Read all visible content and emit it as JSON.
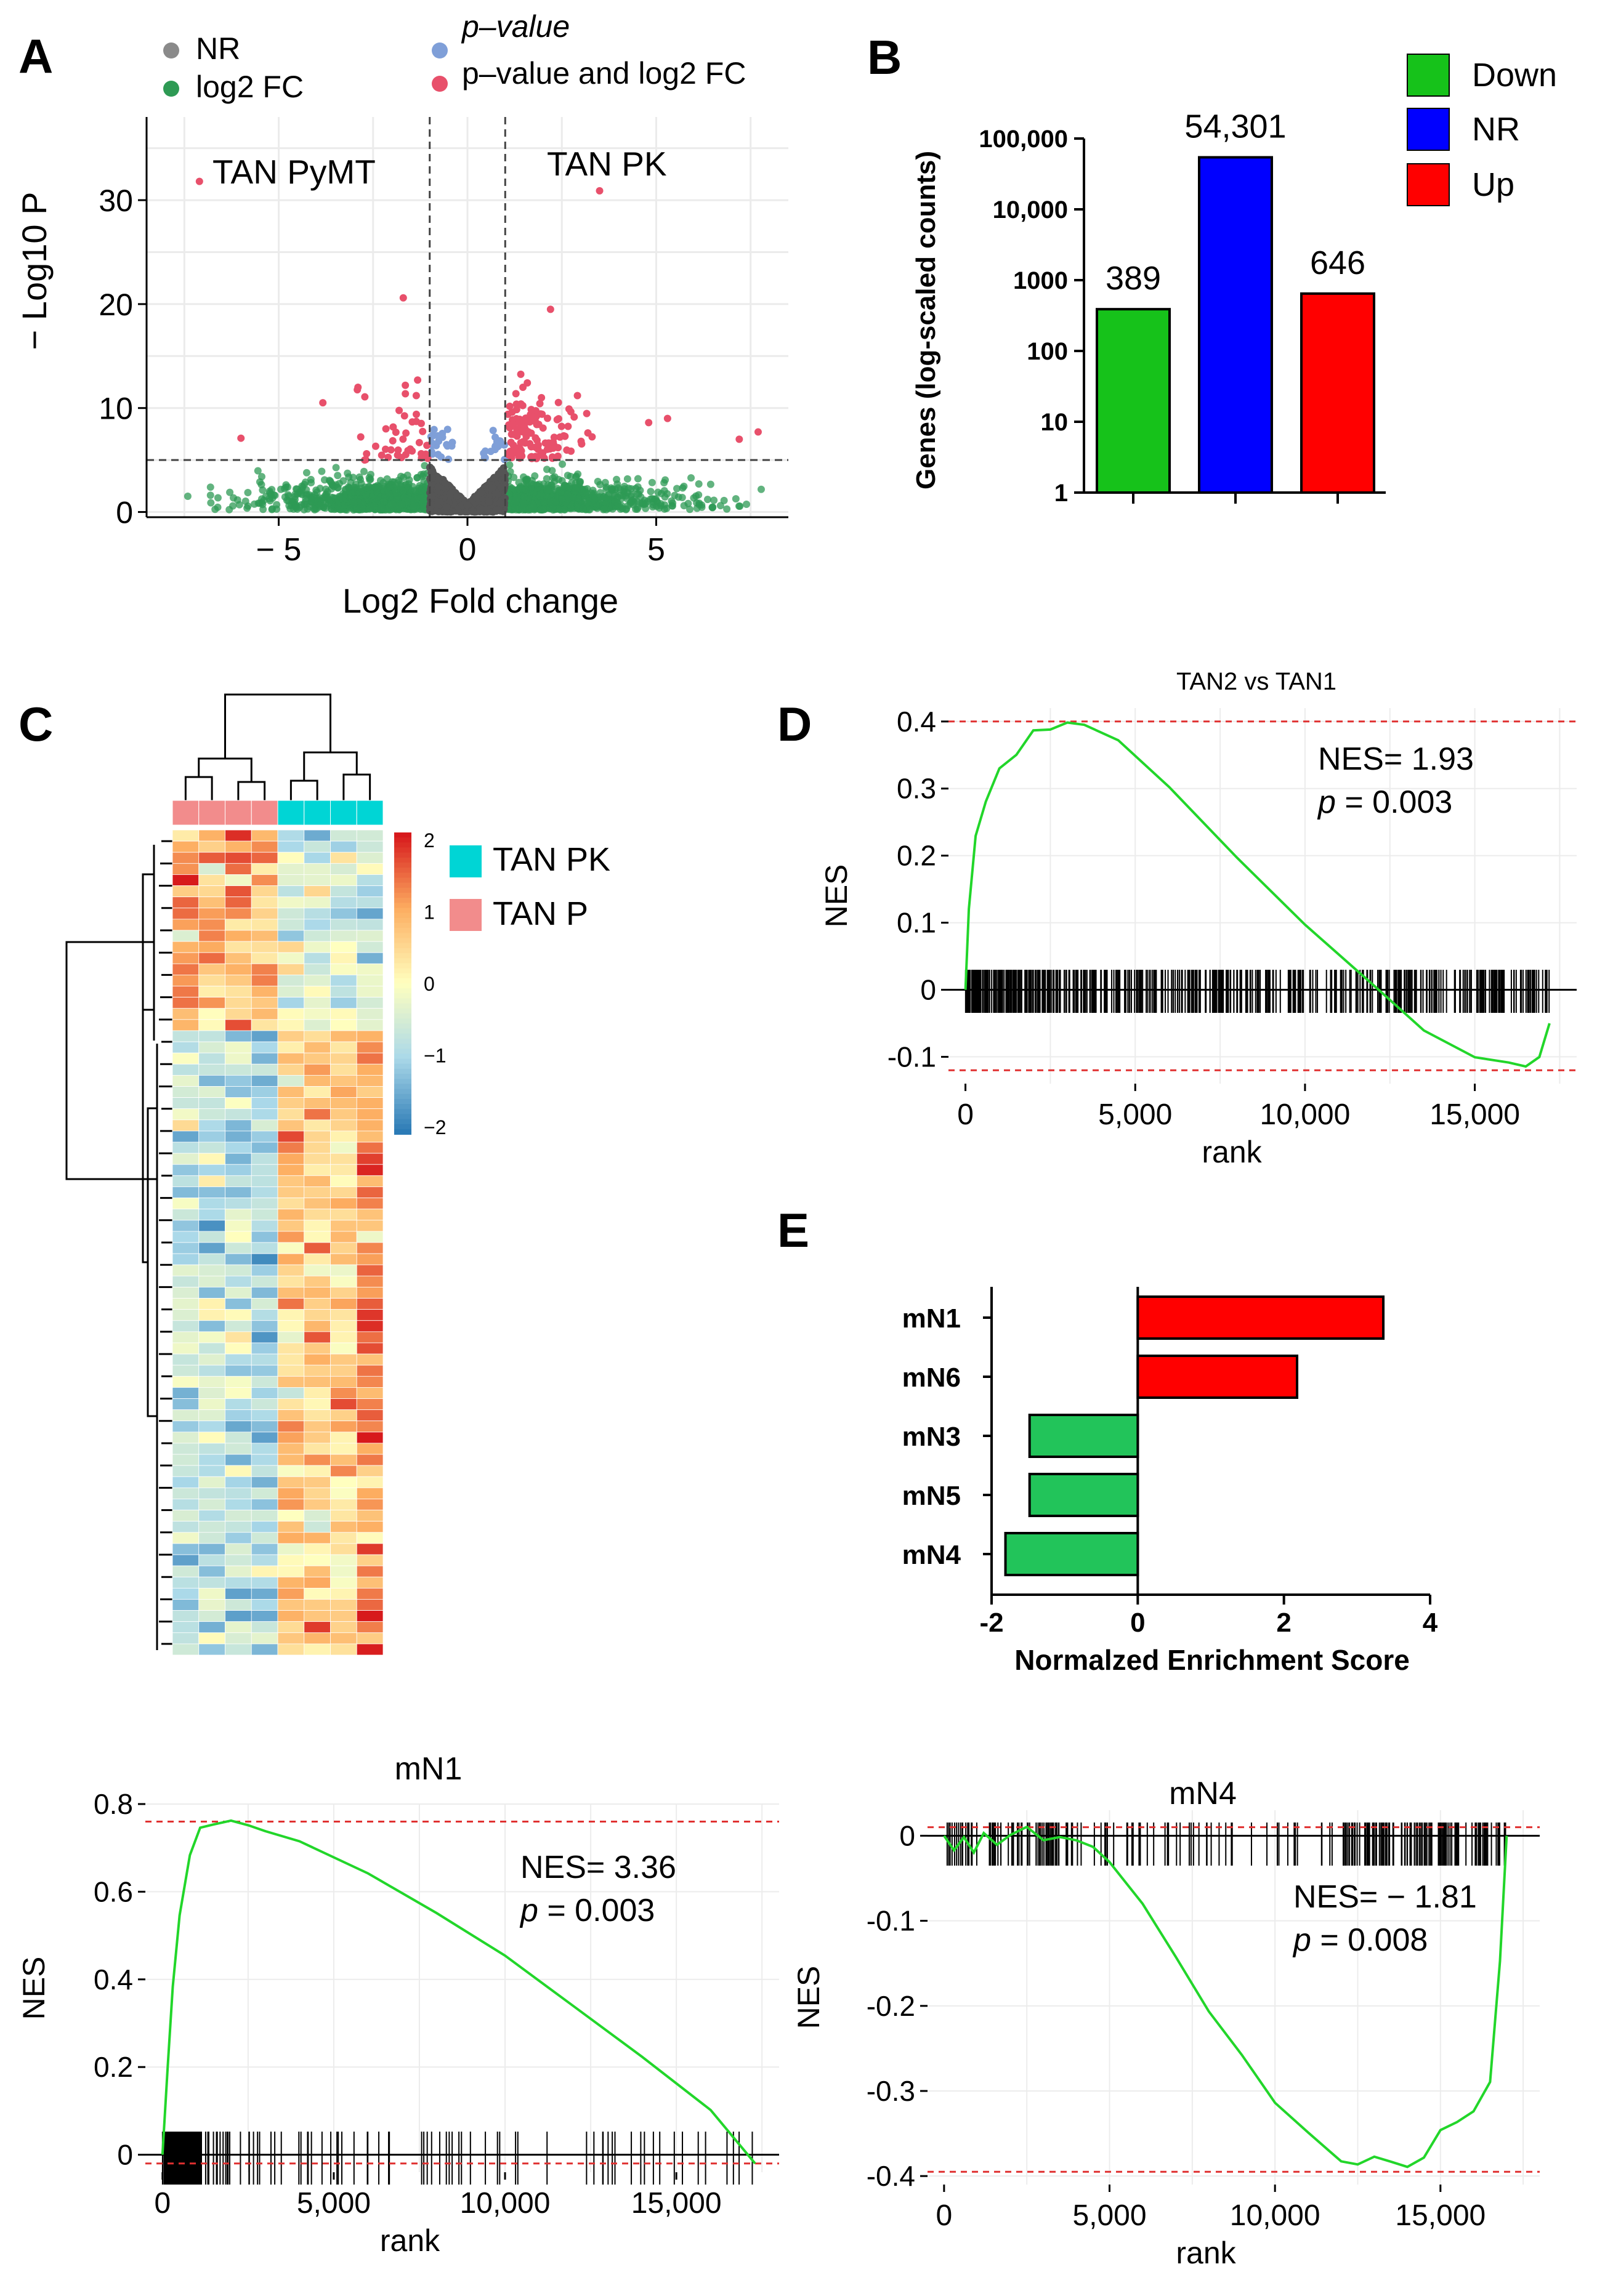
{
  "panels": {
    "A": {
      "letter": "A",
      "legend": [
        {
          "label": "NR",
          "color": "#8a8a8a"
        },
        {
          "label": "log2 FC",
          "color": "#2e9a54"
        },
        {
          "label": "p–value",
          "color": "#7f9fd8"
        },
        {
          "label": "p–value and log2 FC",
          "color": "#e8506b"
        }
      ],
      "left_label": "TAN PyMT",
      "right_label": "TAN PK",
      "xlabel": "Log2 Fold change",
      "ylabel": "− Log10 P",
      "xticks": [
        -5,
        0,
        5
      ],
      "xtick_labels": [
        "− 5",
        "0",
        "5"
      ],
      "yticks": [
        0,
        10,
        20,
        30
      ],
      "xlim": [
        -8.5,
        8.5
      ],
      "ylim": [
        -0.5,
        38
      ],
      "vlines": [
        -1,
        1
      ],
      "hline": 5
    },
    "B": {
      "letter": "B",
      "legend": [
        {
          "label": "Down",
          "color": "#16c21a"
        },
        {
          "label": "NR",
          "color": "#0000ff"
        },
        {
          "label": "Up",
          "color": "#ff0000"
        }
      ]
    },
    "C": {
      "letter": "C",
      "legend": [
        {
          "label": "TAN PK",
          "color": "#00d5d5"
        },
        {
          "label": "TAN P",
          "color": "#f28c8c"
        }
      ],
      "colorbar_ticks": [
        "2",
        "1",
        "0",
        "−1",
        "−2"
      ]
    },
    "D": {
      "letter": "D"
    },
    "E": {
      "letter": "E"
    }
  },
  "chart_data": [
    {
      "id": "B",
      "type": "bar",
      "categories": [
        "Down",
        "NR",
        "Up"
      ],
      "values": [
        389,
        54301,
        646
      ],
      "value_labels": [
        "389",
        "54,301",
        "646"
      ],
      "colors": [
        "#16c21a",
        "#0000ff",
        "#ff0000"
      ],
      "ylabel": "Genes (log-scaled counts)",
      "yscale": "log",
      "yticks": [
        1,
        10,
        100,
        1000,
        10000,
        100000
      ],
      "ytick_labels": [
        "1",
        "10",
        "100",
        "1000",
        "10,000",
        "100,000"
      ],
      "ylim": [
        1,
        100000
      ]
    },
    {
      "id": "D",
      "type": "line",
      "title": "TAN2 vs TAN1",
      "xlabel": "rank",
      "ylabel": "NES",
      "annotation": [
        "NES= 1.93",
        "p = 0.003"
      ],
      "xlim": [
        -500,
        18000
      ],
      "ylim": [
        -0.14,
        0.42
      ],
      "xticks": [
        0,
        5000,
        10000,
        15000
      ],
      "xtick_labels": [
        "0",
        "5,000",
        "10,000",
        "15,000"
      ],
      "yticks": [
        -0.1,
        0,
        0.1,
        0.2,
        0.3,
        0.4
      ],
      "ytick_labels": [
        "-0.1",
        "0",
        "0.1",
        "0.2",
        "0.3",
        "0.4"
      ],
      "x": [
        0,
        100,
        300,
        600,
        1000,
        1500,
        2000,
        2500,
        3000,
        3500,
        4500,
        6000,
        8000,
        10000,
        12000,
        13500,
        15000,
        16000,
        16500,
        16900,
        17200
      ],
      "y": [
        0,
        0.12,
        0.22,
        0.28,
        0.32,
        0.35,
        0.38,
        0.39,
        0.4,
        0.395,
        0.37,
        0.3,
        0.2,
        0.1,
        0.01,
        -0.06,
        -0.1,
        -0.115,
        -0.12,
        -0.1,
        -0.05
      ],
      "dashed_lines": [
        0.4,
        -0.12
      ],
      "rug": "dense"
    },
    {
      "id": "E",
      "type": "bar",
      "orientation": "horizontal",
      "categories": [
        "mN1",
        "mN6",
        "mN3",
        "mN5",
        "mN4"
      ],
      "values": [
        3.36,
        2.18,
        -1.48,
        -1.48,
        -1.81
      ],
      "colors": [
        "#ff0000",
        "#ff0000",
        "#22c45a",
        "#22c45a",
        "#22c45a"
      ],
      "xlabel": "Normalzed  Enrichment  Score",
      "xticks": [
        -2,
        0,
        2,
        4
      ],
      "xlim": [
        -2,
        4
      ]
    },
    {
      "id": "F",
      "type": "line",
      "title": "mN1",
      "xlabel": "rank",
      "ylabel": "NES",
      "annotation": [
        "NES= 3.36",
        "p = 0.003"
      ],
      "xlim": [
        -500,
        18000
      ],
      "ylim": [
        -0.04,
        0.8
      ],
      "xticks": [
        0,
        5000,
        10000,
        15000
      ],
      "xtick_labels": [
        "0",
        "5,000",
        "10,000",
        "15,000"
      ],
      "yticks": [
        0,
        0.2,
        0.4,
        0.6,
        0.8
      ],
      "ytick_labels": [
        "0",
        "0.2",
        "0.4",
        "0.6",
        "0.8"
      ],
      "x": [
        0,
        150,
        300,
        500,
        800,
        1100,
        1500,
        2000,
        2500,
        3000,
        4000,
        6000,
        8000,
        10000,
        12000,
        14000,
        16000,
        17300
      ],
      "y": [
        0,
        0.2,
        0.38,
        0.55,
        0.68,
        0.74,
        0.755,
        0.76,
        0.755,
        0.745,
        0.715,
        0.64,
        0.55,
        0.45,
        0.34,
        0.22,
        0.1,
        -0.02
      ],
      "dashed_lines": [
        0.76,
        -0.02
      ],
      "rug": "left-heavy"
    },
    {
      "id": "G",
      "type": "line",
      "title": "mN4",
      "xlabel": "rank",
      "ylabel": "NES",
      "annotation": [
        "NES= − 1.81",
        "p = 0.008"
      ],
      "xlim": [
        -500,
        18000
      ],
      "ylim": [
        -0.41,
        0.03
      ],
      "xticks": [
        0,
        5000,
        10000,
        15000
      ],
      "xtick_labels": [
        "0",
        "5,000",
        "10,000",
        "15,000"
      ],
      "yticks": [
        -0.4,
        -0.3,
        -0.2,
        -0.1,
        0
      ],
      "ytick_labels": [
        "-0.4",
        "-0.3",
        "-0.2",
        "-0.1",
        "0"
      ],
      "x": [
        0,
        300,
        600,
        900,
        1200,
        1600,
        2000,
        2500,
        3000,
        3500,
        4000,
        4500,
        5000,
        6000,
        7000,
        8000,
        9000,
        10000,
        11000,
        12000,
        12500,
        13000,
        13500,
        14000,
        14500,
        15000,
        15500,
        16000,
        16500,
        16800,
        17000
      ],
      "y": [
        0,
        -0.01,
        -0.005,
        -0.015,
        -0.005,
        -0.01,
        0,
        0.003,
        0.005,
        0.0,
        -0.005,
        -0.02,
        -0.04,
        -0.08,
        -0.14,
        -0.2,
        -0.26,
        -0.31,
        -0.35,
        -0.375,
        -0.385,
        -0.38,
        -0.39,
        -0.385,
        -0.37,
        -0.35,
        -0.335,
        -0.32,
        -0.29,
        -0.15,
        0
      ],
      "dashed_lines": [
        0.01,
        -0.395
      ],
      "rug": "right-heavy"
    }
  ]
}
